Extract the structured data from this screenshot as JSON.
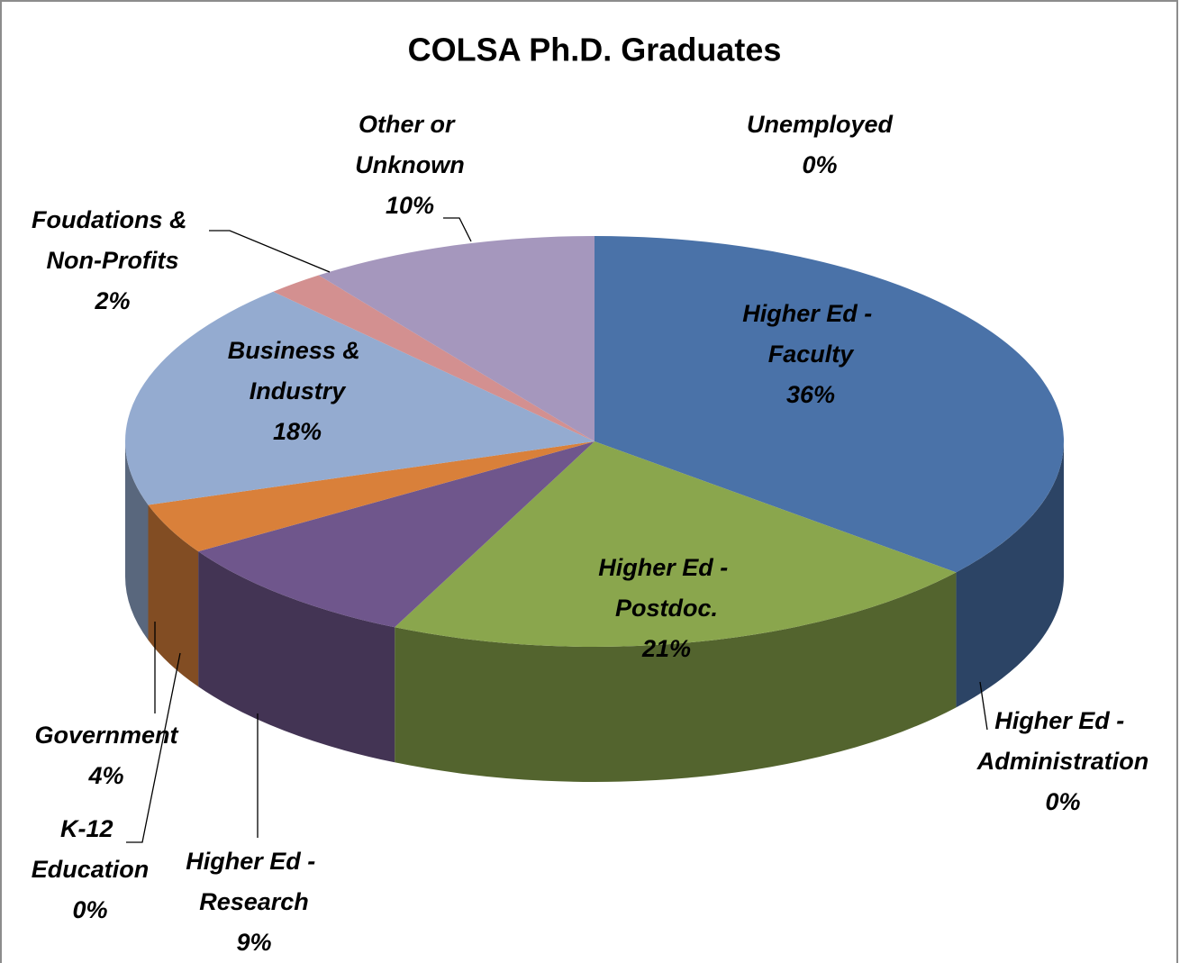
{
  "chart_data": {
    "type": "pie",
    "title": "COLSA Ph.D. Graduates",
    "categories": [
      "Higher Ed - Faculty",
      "Higher Ed - Administration",
      "Higher Ed - Postdoc.",
      "Higher Ed - Research",
      "K-12 Education",
      "Government",
      "Business & Industry",
      "Foudations & Non-Profits",
      "Other or Unknown",
      "Unemployed"
    ],
    "values": [
      36,
      0,
      21,
      9,
      0,
      4,
      18,
      2,
      10,
      0
    ],
    "value_labels": [
      "36%",
      "0%",
      "21%",
      "9%",
      "0%",
      "4%",
      "18%",
      "2%",
      "10%",
      "0%"
    ],
    "colors": [
      "#4a72a8",
      "#c0504d",
      "#8aa64d",
      "#6f568c",
      "#4bacc6",
      "#d9803a",
      "#94abd0",
      "#d39090",
      "#a597bd",
      "#b9cde5"
    ]
  }
}
